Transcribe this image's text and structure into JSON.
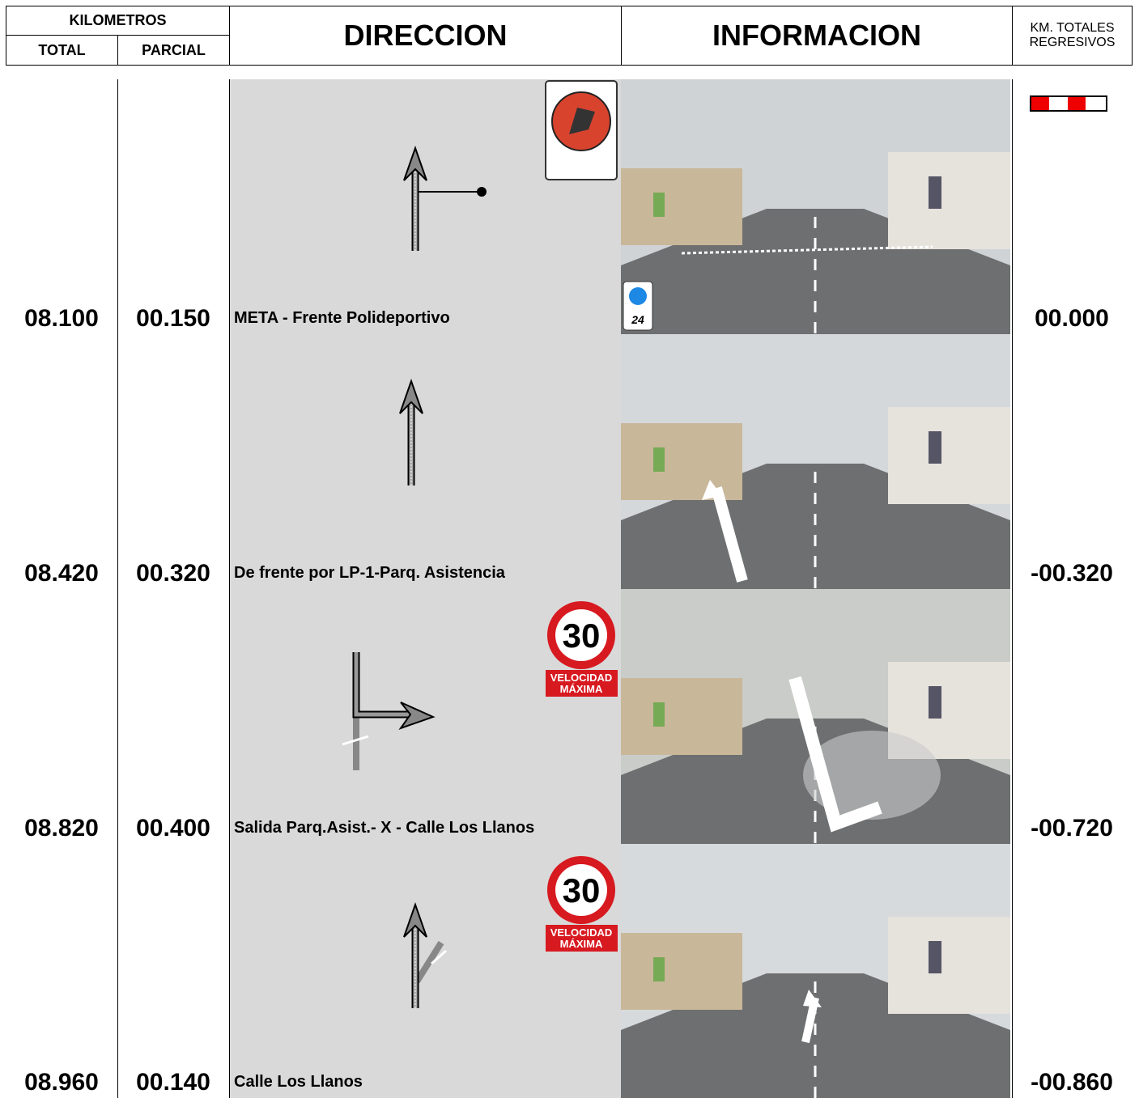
{
  "header": {
    "kilometros": "KILOMETROS",
    "total": "TOTAL",
    "parcial": "PARCIAL",
    "direccion": "DIRECCION",
    "informacion": "INFORMACION",
    "regresivos_1": "KM. TOTALES",
    "regresivos_2": "REGRESIVOS"
  },
  "rows": [
    {
      "total": "08.100",
      "parcial": "00.150",
      "direccion": "META - Frente Polideportivo",
      "regresivo": "00.000",
      "photo_badge": "24"
    },
    {
      "total": "08.420",
      "parcial": "00.320",
      "direccion": "De frente por LP-1-Parq. Asistencia",
      "regresivo": "-00.320"
    },
    {
      "total": "08.820",
      "parcial": "00.400",
      "direccion": "Salida Parq.Asist.- X - Calle Los Llanos",
      "regresivo": "-00.720",
      "sign": {
        "speed": "30",
        "line1": "VELOCIDAD",
        "line2": "MÁXIMA"
      }
    },
    {
      "total": "08.960",
      "parcial": "00.140",
      "direccion": "Calle Los Llanos",
      "regresivo": "-00.860",
      "sign": {
        "speed": "30",
        "line1": "VELOCIDAD",
        "line2": "MÁXIMA"
      }
    }
  ]
}
